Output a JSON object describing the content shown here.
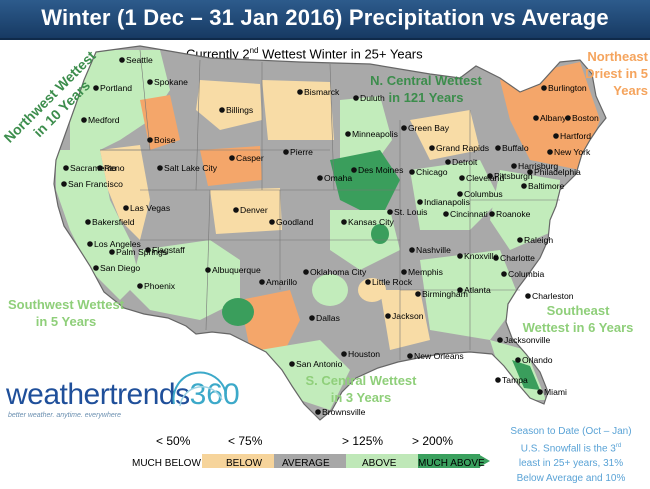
{
  "title": "Winter (1 Dec – 31 Jan 2016) Precipitation vs Average",
  "subtitle": {
    "prefix": "Currently 2",
    "sup": "nd",
    "suffix": " Wettest Winter in 25+ Years"
  },
  "annotations": {
    "northwest": [
      "Northwest Wettest",
      "in 10 Years"
    ],
    "northeast": [
      "Northeast",
      "Driest in 5 Years"
    ],
    "north_central": [
      "N. Central Wettest",
      "in 121 Years"
    ],
    "southwest": [
      "Southwest Wettest",
      "in 5 Years"
    ],
    "southeast": [
      "Southeast",
      "Wettest in 6 Years"
    ],
    "south_central": [
      "S. Central Wettest",
      "in 3 Years"
    ]
  },
  "cities": [
    "Seattle",
    "Spokane",
    "Portland",
    "Medford",
    "Boise",
    "Sacramento",
    "San Francisco",
    "Reno",
    "Bakersfield",
    "Los Angeles",
    "San Diego",
    "Palm Springs",
    "Las Vegas",
    "Phoenix",
    "Flagstaff",
    "Salt Lake City",
    "Billings",
    "Casper",
    "Denver",
    "Albuquerque",
    "Bismarck",
    "Pierre",
    "Duluth",
    "Minneapolis",
    "Green Bay",
    "Des Moines",
    "Omaha",
    "Goodland",
    "Kansas City",
    "St. Louis",
    "Chicago",
    "Grand Rapids",
    "Detroit",
    "Cleveland",
    "Indianapolis",
    "Columbus",
    "Cincinnati",
    "Pittsburgh",
    "Buffalo",
    "Albany",
    "Burlington",
    "Boston",
    "Hartford",
    "New York",
    "Harrisburg",
    "Philadelphia",
    "Baltimore",
    "Roanoke",
    "Raleigh",
    "Charlotte",
    "Columbia",
    "Charleston",
    "Atlanta",
    "Knoxville",
    "Nashville",
    "Memphis",
    "Birmingham",
    "Little Rock",
    "Oklahoma City",
    "Amarillo",
    "Dallas",
    "San Antonio",
    "Houston",
    "Jackson",
    "New Orleans",
    "Jacksonville",
    "Orlando",
    "Tampa",
    "Miami",
    "Brownsville"
  ],
  "legend": {
    "thresholds": [
      "< 50%",
      "< 75%",
      "> 125%",
      "> 200%"
    ],
    "categories": [
      {
        "label": "MUCH BELOW",
        "color": "#ffffff"
      },
      {
        "label": "BELOW",
        "color": "#f6d49b"
      },
      {
        "label": "AVERAGE",
        "color": "#a7a7a7"
      },
      {
        "label": "ABOVE",
        "color": "#bfe8b8"
      },
      {
        "label": "MUCH ABOVE",
        "color": "#3aa05e"
      }
    ]
  },
  "colors": {
    "much_below": "#f4a66a",
    "below": "#f8dca6",
    "average": "#a9a9a9",
    "above": "#c2ecbb",
    "much_above": "#3a9e5c",
    "title_bar": "#234d7a"
  },
  "logo": {
    "word": "weathertrends",
    "number": "360",
    "tagline": "better weather. anytime. everywhere"
  },
  "snowfall_note": {
    "line1": "Season to Date (Oct – Jan)",
    "line2_prefix": "U.S. Snowfall is the 3",
    "line2_sup": "rd",
    "line3": "least in 25+ years, 31%",
    "line4": "Below Average and 10%"
  }
}
